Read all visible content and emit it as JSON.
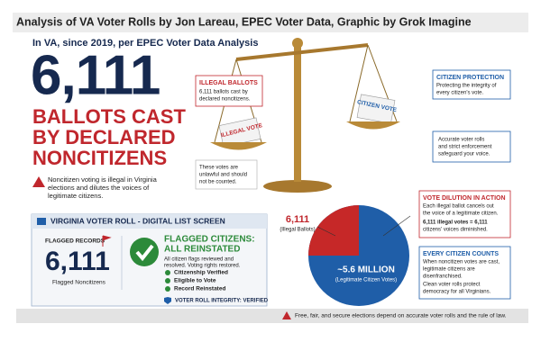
{
  "header": {
    "title": "Analysis of VA Voter Rolls by Jon Lareau, EPEC Voter Data, Graphic by Grok Imagine"
  },
  "hero": {
    "subtitle": "In VA, since 2019, per EPEC Voter Data Analysis",
    "number": "6,111",
    "headline": [
      "BALLOTS CAST",
      "BY DECLARED",
      "NONCITIZENS"
    ],
    "warning": [
      "Noncitizen voting is illegal in Virginia",
      "elections and dilutes the voices of",
      "legitimate citizens."
    ]
  },
  "callouts": {
    "illegal_ballots": {
      "title": "ILLEGAL BALLOTS",
      "body": [
        "6,111 ballots cast by",
        "declared noncitizens."
      ]
    },
    "unlawful": [
      "These votes are",
      "unlawful and should",
      "not be counted."
    ],
    "citizen_protection": {
      "title": "CITIZEN PROTECTION",
      "body": [
        "Protecting the integrity of",
        "every citizen's vote."
      ]
    },
    "accurate": [
      "Accurate voter rolls",
      "and strict enforcement",
      "safeguard your voice."
    ]
  },
  "scale": {
    "left_label": "ILLEGAL VOTE",
    "right_label": "CITIZEN VOTE"
  },
  "roll_panel": {
    "title": "VIRGINIA VOTER ROLL - DIGITAL LIST SCREEN",
    "flagged_label": "FLAGGED RECORDS",
    "count": "6,111",
    "count_label": "Flagged Noncitizens",
    "status": [
      "FLAGGED CITIZENS:",
      "ALL REINSTATED"
    ],
    "status_body": [
      "All citizen flags reviewed and",
      "resolved. Voting rights restored."
    ],
    "checks": [
      "Citizenship Verified",
      "Eligible to Vote",
      "Record Reinstated"
    ],
    "footer": "VOTER ROLL INTEGRITY: VERIFIED"
  },
  "pie": {
    "illegal": "6,111",
    "illegal_label": "(Illegal Ballots)",
    "citizen": "~5.6 MILLION",
    "citizen_label": "(Legitimate Citizen Votes)"
  },
  "dilution": {
    "title": "VOTE DILUTION IN ACTION",
    "body": [
      "Each illegal ballot cancels out",
      "the voice of a legitimate citizen."
    ],
    "equation": [
      "6,111 illegal votes = 6,111",
      "citizens' voices diminished."
    ]
  },
  "every_citizen": {
    "title": "EVERY CITIZEN COUNTS",
    "body": [
      "When noncitizen votes are cast,",
      "legitimate citizens are",
      "disenfranchised.",
      "Clean voter rolls protect",
      "democracy for all Virginians."
    ]
  },
  "footer": "Free, fair, and secure elections depend on accurate voter rolls and the rule of law."
}
